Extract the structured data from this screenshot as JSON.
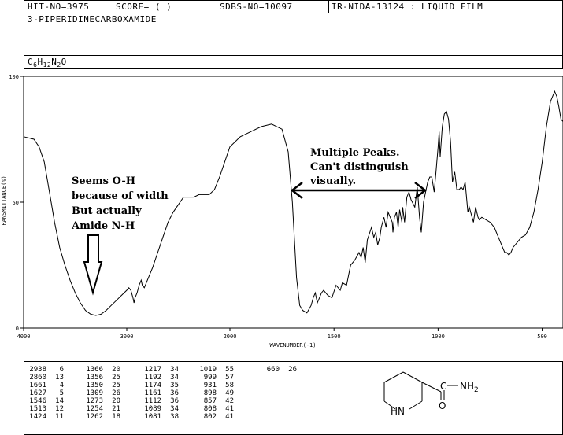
{
  "header": {
    "hit_no": "HIT-NO=3975",
    "score": "SCORE=  (   )",
    "sdbs_no": "SDBS-NO=10097",
    "ir_info": "IR-NIDA-13124 : LIQUID FILM"
  },
  "compound": {
    "name": "3-PIPERIDINECARBOXAMIDE",
    "formula_parts": [
      "C",
      "6",
      "H",
      "12",
      "N",
      "2",
      "O"
    ]
  },
  "chart_data": {
    "type": "line",
    "xlabel": "WAVENUMBER(-1)",
    "ylabel": "TRANSMITTANCE(%)",
    "xlim": [
      4000,
      400
    ],
    "ylim": [
      0,
      100
    ],
    "x_ticks": [
      "4000",
      "3000",
      "2000",
      "1500",
      "1000",
      "500"
    ],
    "y_ticks": [
      "100",
      "50",
      "0"
    ],
    "grid": false,
    "series": [
      {
        "points": [
          [
            4000,
            76
          ],
          [
            3900,
            75
          ],
          [
            3850,
            72
          ],
          [
            3800,
            66
          ],
          [
            3750,
            54
          ],
          [
            3700,
            42
          ],
          [
            3650,
            32
          ],
          [
            3600,
            25
          ],
          [
            3550,
            19
          ],
          [
            3500,
            14
          ],
          [
            3450,
            10
          ],
          [
            3400,
            7
          ],
          [
            3350,
            5.5
          ],
          [
            3300,
            5
          ],
          [
            3250,
            5.5
          ],
          [
            3200,
            7
          ],
          [
            3150,
            9
          ],
          [
            3100,
            11
          ],
          [
            3050,
            13
          ],
          [
            3000,
            15
          ],
          [
            2980,
            16
          ],
          [
            2960,
            15
          ],
          [
            2940,
            12
          ],
          [
            2930,
            10
          ],
          [
            2920,
            12
          ],
          [
            2900,
            14
          ],
          [
            2880,
            17
          ],
          [
            2860,
            19
          ],
          [
            2850,
            17
          ],
          [
            2830,
            16
          ],
          [
            2800,
            19
          ],
          [
            2750,
            24
          ],
          [
            2700,
            30
          ],
          [
            2650,
            36
          ],
          [
            2600,
            42
          ],
          [
            2550,
            46
          ],
          [
            2500,
            49
          ],
          [
            2450,
            52
          ],
          [
            2400,
            52
          ],
          [
            2350,
            52
          ],
          [
            2300,
            53
          ],
          [
            2250,
            53
          ],
          [
            2200,
            53
          ],
          [
            2150,
            55
          ],
          [
            2100,
            60
          ],
          [
            2050,
            66
          ],
          [
            2000,
            72
          ],
          [
            1950,
            76
          ],
          [
            1900,
            78
          ],
          [
            1850,
            80
          ],
          [
            1800,
            81
          ],
          [
            1750,
            79
          ],
          [
            1720,
            70
          ],
          [
            1700,
            50
          ],
          [
            1680,
            20
          ],
          [
            1665,
            9
          ],
          [
            1650,
            7
          ],
          [
            1630,
            6
          ],
          [
            1610,
            9
          ],
          [
            1600,
            12
          ],
          [
            1590,
            14
          ],
          [
            1580,
            10
          ],
          [
            1570,
            12
          ],
          [
            1560,
            14
          ],
          [
            1550,
            15
          ],
          [
            1540,
            14
          ],
          [
            1530,
            13
          ],
          [
            1510,
            12
          ],
          [
            1490,
            17
          ],
          [
            1470,
            15
          ],
          [
            1460,
            18
          ],
          [
            1440,
            17
          ],
          [
            1420,
            25
          ],
          [
            1400,
            27
          ],
          [
            1380,
            30
          ],
          [
            1370,
            28
          ],
          [
            1360,
            32
          ],
          [
            1350,
            26
          ],
          [
            1340,
            35
          ],
          [
            1320,
            40
          ],
          [
            1309,
            36
          ],
          [
            1300,
            38
          ],
          [
            1290,
            33
          ],
          [
            1280,
            36
          ],
          [
            1273,
            40
          ],
          [
            1260,
            44
          ],
          [
            1250,
            40
          ],
          [
            1240,
            46
          ],
          [
            1220,
            42
          ],
          [
            1217,
            38
          ],
          [
            1210,
            44
          ],
          [
            1200,
            46
          ],
          [
            1192,
            40
          ],
          [
            1185,
            47
          ],
          [
            1174,
            42
          ],
          [
            1170,
            48
          ],
          [
            1161,
            42
          ],
          [
            1150,
            52
          ],
          [
            1140,
            54
          ],
          [
            1130,
            51
          ],
          [
            1112,
            48
          ],
          [
            1100,
            56
          ],
          [
            1089,
            44
          ],
          [
            1081,
            38
          ],
          [
            1070,
            50
          ],
          [
            1060,
            54
          ],
          [
            1050,
            58
          ],
          [
            1040,
            60
          ],
          [
            1030,
            60
          ],
          [
            1019,
            54
          ],
          [
            1010,
            62
          ],
          [
            1000,
            72
          ],
          [
            995,
            78
          ],
          [
            990,
            68
          ],
          [
            980,
            80
          ],
          [
            970,
            85
          ],
          [
            960,
            86
          ],
          [
            950,
            83
          ],
          [
            940,
            74
          ],
          [
            931,
            58
          ],
          [
            920,
            62
          ],
          [
            910,
            55
          ],
          [
            898,
            55
          ],
          [
            890,
            56
          ],
          [
            880,
            55
          ],
          [
            870,
            58
          ],
          [
            857,
            46
          ],
          [
            850,
            48
          ],
          [
            830,
            42
          ],
          [
            820,
            48
          ],
          [
            808,
            44
          ],
          [
            802,
            43
          ],
          [
            790,
            44
          ],
          [
            770,
            43
          ],
          [
            750,
            42
          ],
          [
            730,
            40
          ],
          [
            710,
            36
          ],
          [
            700,
            34
          ],
          [
            690,
            32
          ],
          [
            680,
            30
          ],
          [
            670,
            30
          ],
          [
            660,
            29
          ],
          [
            650,
            30
          ],
          [
            640,
            32
          ],
          [
            620,
            34
          ],
          [
            600,
            36
          ],
          [
            580,
            37
          ],
          [
            560,
            40
          ],
          [
            540,
            46
          ],
          [
            520,
            55
          ],
          [
            500,
            66
          ],
          [
            480,
            80
          ],
          [
            460,
            90
          ],
          [
            440,
            94
          ],
          [
            430,
            92
          ],
          [
            420,
            88
          ],
          [
            410,
            83
          ],
          [
            400,
            82
          ]
        ]
      }
    ],
    "annotations": {
      "left": [
        "Seems O-H",
        "because of width",
        "But actually",
        "Amide N-H"
      ],
      "right": [
        "Multiple Peaks.",
        "Can't distinguish",
        "visually."
      ]
    }
  },
  "peak_table": [
    [
      [
        "2938",
        "6"
      ],
      [
        "2860",
        "13"
      ],
      [
        "1661",
        "4"
      ],
      [
        "1627",
        "5"
      ],
      [
        "1546",
        "14"
      ],
      [
        "1513",
        "12"
      ],
      [
        "1424",
        "11"
      ]
    ],
    [
      [
        "1366",
        "20"
      ],
      [
        "1356",
        "25"
      ],
      [
        "1350",
        "25"
      ],
      [
        "1309",
        "26"
      ],
      [
        "1273",
        "20"
      ],
      [
        "1254",
        "21"
      ],
      [
        "1262",
        "18"
      ]
    ],
    [
      [
        "1217",
        "34"
      ],
      [
        "1192",
        "34"
      ],
      [
        "1174",
        "35"
      ],
      [
        "1161",
        "36"
      ],
      [
        "1112",
        "36"
      ],
      [
        "1089",
        "34"
      ],
      [
        "1081",
        "38"
      ]
    ],
    [
      [
        "1019",
        "55"
      ],
      [
        "999",
        "57"
      ],
      [
        "931",
        "58"
      ],
      [
        "898",
        "49"
      ],
      [
        "857",
        "42"
      ],
      [
        "808",
        "41"
      ],
      [
        "802",
        "41"
      ]
    ],
    [
      [
        "660",
        "26"
      ]
    ]
  ],
  "structure": {
    "nh_label": "HN",
    "o_label": "O",
    "amide_label": "C",
    "nh2_parts": [
      "NH",
      "2"
    ]
  }
}
